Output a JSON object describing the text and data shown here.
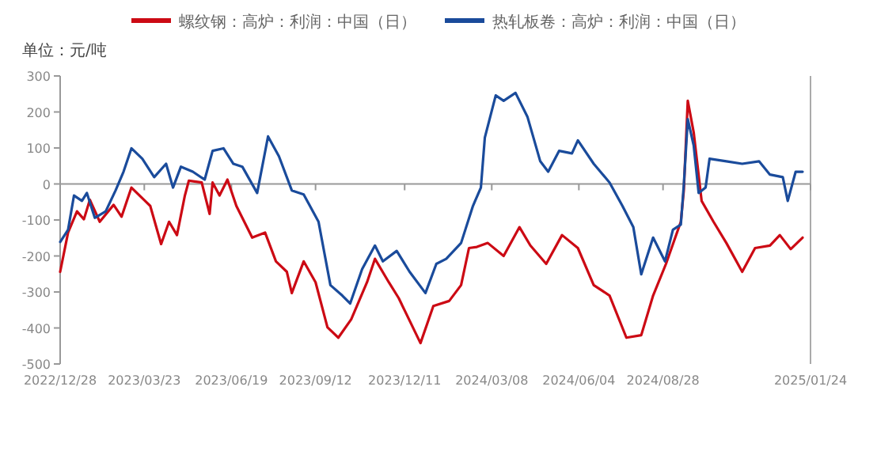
{
  "chart_data": {
    "type": "line",
    "legend": "top",
    "ref_lines": [
      {
        "axis": "y",
        "value": 0,
        "color": "#999999",
        "line_style": "solid"
      }
    ],
    "marker": "none",
    "line_style": "solid",
    "annotations": [
      "单位：元/吨"
    ],
    "xlim": [
      "2022-12-28",
      "2025-01-24"
    ],
    "xticks": [
      {
        "value": "2022-12-28",
        "label": "2022/12/28"
      },
      {
        "value": "2023-03-23",
        "label": "2023/03/23"
      },
      {
        "value": "2023-06-19",
        "label": "2023/06/19"
      },
      {
        "value": "2023-09-12",
        "label": "2023/09/12"
      },
      {
        "value": "2023-12-11",
        "label": "2023/12/11"
      },
      {
        "value": "2024-03-08",
        "label": "2024/03/08"
      },
      {
        "value": "2024-06-04",
        "label": "2024/06/04"
      },
      {
        "value": "2024-08-28",
        "label": "2024/08/28"
      },
      {
        "value": "2025-01-24",
        "label": "2025/01/24"
      }
    ],
    "ylim": [
      -500,
      300
    ],
    "yticks": [
      -500,
      -400,
      -300,
      -200,
      -100,
      0,
      100,
      200,
      300
    ],
    "series": [
      {
        "name": "螺纹钢：高炉：利润：中国（日）",
        "color": "#cc0a14",
        "x": [
          "2022-12-28",
          "2023-01-05",
          "2023-01-14",
          "2023-01-21",
          "2023-01-27",
          "2023-02-06",
          "2023-02-20",
          "2023-02-28",
          "2023-03-10",
          "2023-03-29",
          "2023-04-09",
          "2023-04-17",
          "2023-04-25",
          "2023-05-03",
          "2023-05-07",
          "2023-05-20",
          "2023-05-28",
          "2023-05-31",
          "2023-06-07",
          "2023-06-15",
          "2023-06-24",
          "2023-07-10",
          "2023-07-23",
          "2023-08-03",
          "2023-08-14",
          "2023-08-19",
          "2023-08-31",
          "2023-09-12",
          "2023-09-24",
          "2023-10-05",
          "2023-10-18",
          "2023-11-03",
          "2023-11-11",
          "2023-11-25",
          "2023-12-05",
          "2023-12-27",
          "2024-01-09",
          "2024-01-25",
          "2024-02-06",
          "2024-02-14",
          "2024-02-22",
          "2024-03-04",
          "2024-03-20",
          "2024-04-05",
          "2024-04-16",
          "2024-05-02",
          "2024-05-18",
          "2024-06-03",
          "2024-06-19",
          "2024-07-05",
          "2024-07-22",
          "2024-08-06",
          "2024-08-18",
          "2024-08-31",
          "2024-09-15",
          "2024-09-18",
          "2024-09-22",
          "2024-09-28",
          "2024-10-06",
          "2024-10-18",
          "2024-10-31",
          "2024-11-16",
          "2024-11-29",
          "2024-12-14",
          "2024-12-24",
          "2025-01-04",
          "2025-01-16"
        ],
        "values": [
          -244,
          -135,
          -76,
          -98,
          -44,
          -105,
          -58,
          -91,
          -10,
          -61,
          -167,
          -105,
          -142,
          -32,
          9,
          4,
          -83,
          4,
          -32,
          12,
          -61,
          -149,
          -135,
          -215,
          -244,
          -303,
          -215,
          -273,
          -398,
          -427,
          -376,
          -273,
          -208,
          -273,
          -317,
          -442,
          -339,
          -325,
          -281,
          -178,
          -175,
          -164,
          -200,
          -120,
          -171,
          -222,
          -142,
          -178,
          -281,
          -310,
          -427,
          -420,
          -310,
          -222,
          -105,
          -18,
          231,
          143,
          -47,
          -105,
          -164,
          -244,
          -178,
          -171,
          -142,
          -181,
          -149
        ]
      },
      {
        "name": "热轧板卷：高炉：利润：中国（日）",
        "color": "#1a4b9b",
        "x": [
          "2022-12-28",
          "2023-01-05",
          "2023-01-11",
          "2023-01-19",
          "2023-01-24",
          "2023-02-01",
          "2023-02-12",
          "2023-02-22",
          "2023-03-02",
          "2023-03-10",
          "2023-03-21",
          "2023-04-02",
          "2023-04-14",
          "2023-04-21",
          "2023-04-29",
          "2023-05-11",
          "2023-05-23",
          "2023-05-31",
          "2023-06-11",
          "2023-06-21",
          "2023-06-30",
          "2023-07-15",
          "2023-07-26",
          "2023-08-06",
          "2023-08-19",
          "2023-08-31",
          "2023-09-15",
          "2023-09-27",
          "2023-10-09",
          "2023-10-17",
          "2023-10-29",
          "2023-11-11",
          "2023-11-19",
          "2023-12-03",
          "2023-12-16",
          "2024-01-01",
          "2024-01-12",
          "2024-01-22",
          "2024-02-06",
          "2024-02-18",
          "2024-02-26",
          "2024-03-01",
          "2024-03-12",
          "2024-03-20",
          "2024-04-01",
          "2024-04-13",
          "2024-04-26",
          "2024-05-04",
          "2024-05-15",
          "2024-05-28",
          "2024-06-03",
          "2024-06-19",
          "2024-07-05",
          "2024-07-18",
          "2024-07-29",
          "2024-08-06",
          "2024-08-18",
          "2024-08-30",
          "2024-09-07",
          "2024-09-15",
          "2024-09-18",
          "2024-09-22",
          "2024-09-28",
          "2024-10-03",
          "2024-10-10",
          "2024-10-14",
          "2024-10-31",
          "2024-11-16",
          "2024-12-03",
          "2024-12-14",
          "2024-12-27",
          "2025-01-01",
          "2025-01-09",
          "2025-01-16"
        ],
        "values": [
          -161,
          -127,
          -32,
          -47,
          -25,
          -94,
          -76,
          -18,
          34,
          99,
          70,
          19,
          56,
          -10,
          48,
          34,
          12,
          92,
          99,
          56,
          48,
          -25,
          132,
          77,
          -18,
          -29,
          -105,
          -281,
          -310,
          -332,
          -237,
          -171,
          -215,
          -186,
          -244,
          -303,
          -222,
          -208,
          -164,
          -61,
          -10,
          129,
          246,
          231,
          253,
          187,
          63,
          34,
          92,
          85,
          121,
          56,
          4,
          -61,
          -120,
          -251,
          -149,
          -215,
          -127,
          -113,
          -3,
          180,
          107,
          -25,
          -10,
          70,
          63,
          56,
          63,
          26,
          19,
          -47,
          34,
          34
        ]
      }
    ]
  }
}
